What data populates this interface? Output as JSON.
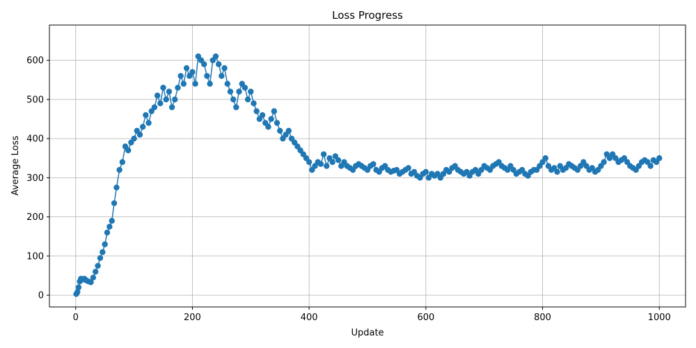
{
  "chart_data": {
    "type": "line",
    "title": "Loss Progress",
    "xlabel": "Update",
    "ylabel": "Average Loss",
    "xlim": [
      -45,
      1045
    ],
    "ylim": [
      -30,
      690
    ],
    "xticks": [
      0,
      200,
      400,
      600,
      800,
      1000
    ],
    "yticks": [
      0,
      100,
      200,
      300,
      400,
      500,
      600
    ],
    "grid": true,
    "marker": "circle",
    "color": "#1f77b4",
    "series": [
      {
        "x": [
          1,
          3,
          5,
          7,
          9,
          12,
          15,
          18,
          22,
          26,
          30,
          34,
          38,
          42,
          46,
          50,
          54,
          58,
          62,
          66,
          70,
          75,
          80,
          85,
          90,
          95,
          100,
          105,
          110,
          115,
          120,
          125,
          130,
          135,
          140,
          145,
          150,
          155,
          160,
          165,
          170,
          175,
          180,
          185,
          190,
          195,
          200,
          205,
          210,
          215,
          220,
          225,
          230,
          235,
          240,
          245,
          250,
          255,
          260,
          265,
          270,
          275,
          280,
          285,
          290,
          295,
          300,
          305,
          310,
          315,
          320,
          325,
          330,
          335,
          340,
          345,
          350,
          355,
          360,
          365,
          370,
          375,
          380,
          385,
          390,
          395,
          400,
          405,
          410,
          415,
          420,
          425,
          430,
          435,
          440,
          445,
          450,
          455,
          460,
          465,
          470,
          475,
          480,
          485,
          490,
          495,
          500,
          505,
          510,
          515,
          520,
          525,
          530,
          535,
          540,
          545,
          550,
          555,
          560,
          565,
          570,
          575,
          580,
          585,
          590,
          595,
          600,
          605,
          610,
          615,
          620,
          625,
          630,
          635,
          640,
          645,
          650,
          655,
          660,
          665,
          670,
          675,
          680,
          685,
          690,
          695,
          700,
          705,
          710,
          715,
          720,
          725,
          730,
          735,
          740,
          745,
          750,
          755,
          760,
          765,
          770,
          775,
          780,
          785,
          790,
          795,
          800,
          805,
          810,
          815,
          820,
          825,
          830,
          835,
          840,
          845,
          850,
          855,
          860,
          865,
          870,
          875,
          880,
          885,
          890,
          895,
          900,
          905,
          910,
          915,
          920,
          925,
          930,
          935,
          940,
          945,
          950,
          955,
          960,
          965,
          970,
          975,
          980,
          985,
          990,
          995,
          1000
        ],
        "y": [
          3,
          8,
          20,
          35,
          42,
          40,
          42,
          38,
          35,
          33,
          45,
          60,
          75,
          95,
          110,
          130,
          160,
          175,
          190,
          235,
          275,
          320,
          340,
          380,
          370,
          390,
          400,
          420,
          410,
          430,
          460,
          440,
          470,
          480,
          510,
          490,
          530,
          500,
          520,
          480,
          500,
          530,
          560,
          540,
          580,
          560,
          570,
          540,
          610,
          600,
          590,
          560,
          540,
          600,
          610,
          590,
          560,
          580,
          540,
          520,
          500,
          480,
          520,
          540,
          530,
          500,
          520,
          490,
          470,
          450,
          460,
          440,
          430,
          450,
          470,
          440,
          420,
          400,
          410,
          420,
          400,
          390,
          380,
          370,
          360,
          350,
          340,
          320,
          330,
          340,
          335,
          360,
          330,
          350,
          340,
          355,
          345,
          330,
          340,
          330,
          325,
          320,
          330,
          335,
          330,
          325,
          320,
          330,
          335,
          320,
          315,
          325,
          330,
          320,
          315,
          318,
          320,
          310,
          315,
          320,
          325,
          310,
          315,
          305,
          300,
          310,
          315,
          300,
          310,
          305,
          310,
          300,
          310,
          320,
          315,
          325,
          330,
          320,
          315,
          310,
          315,
          305,
          315,
          320,
          310,
          320,
          330,
          325,
          320,
          330,
          335,
          340,
          330,
          325,
          320,
          330,
          320,
          310,
          315,
          320,
          310,
          305,
          315,
          320,
          320,
          330,
          340,
          350,
          330,
          320,
          325,
          315,
          330,
          320,
          325,
          335,
          330,
          325,
          320,
          330,
          340,
          330,
          320,
          325,
          315,
          320,
          330,
          340,
          360,
          350,
          360,
          350,
          340,
          345,
          350,
          340,
          330,
          325,
          320,
          330,
          340,
          345,
          340,
          330,
          345,
          340,
          350
        ]
      }
    ]
  }
}
